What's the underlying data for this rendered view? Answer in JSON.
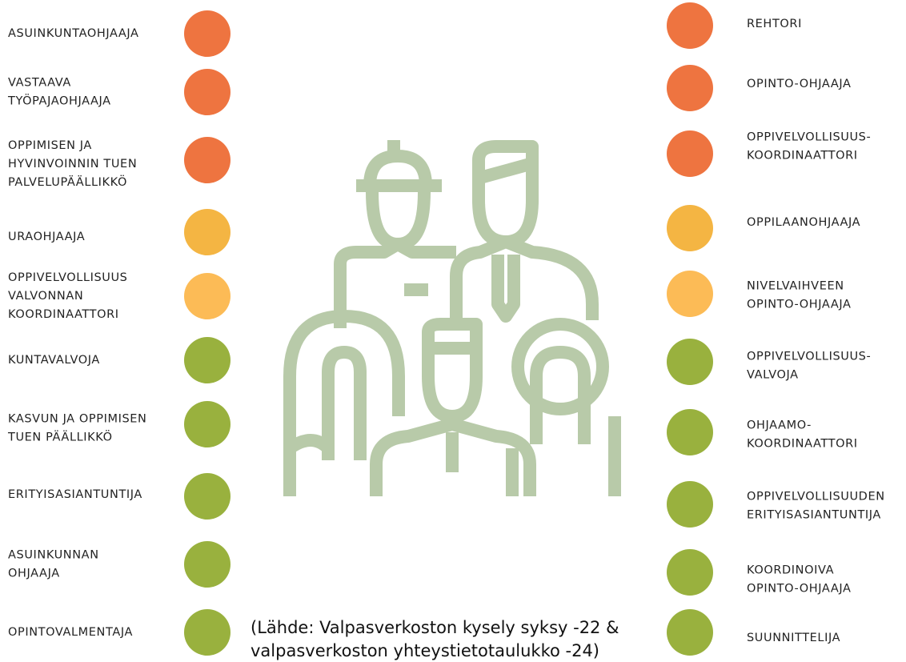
{
  "left": [
    {
      "lines": [
        "ASUINKUNTAOHJAAJA"
      ],
      "color": "#ee7440"
    },
    {
      "lines": [
        "VASTAAVA",
        "TYÖPAJAOHJAAJA"
      ],
      "color": "#ee7440"
    },
    {
      "lines": [
        "OPPIMISEN JA",
        "HYVINVOINNIN TUEN",
        "PALVELUPÄÄLLIKKÖ"
      ],
      "color": "#ee7440"
    },
    {
      "lines": [
        "URAOHJAAJA"
      ],
      "color": "#f4b543"
    },
    {
      "lines": [
        "OPPIVELVOLLISUUS",
        "VALVONNAN",
        "KOORDINAATTORI"
      ],
      "color": "#fcbb56"
    },
    {
      "lines": [
        "KUNTAVALVOJA"
      ],
      "color": "#99b13e"
    },
    {
      "lines": [
        "KASVUN JA OPPIMISEN",
        "TUEN PÄÄLLIKKÖ"
      ],
      "color": "#99b13e"
    },
    {
      "lines": [
        "ERITYISASIANTUNTIJA"
      ],
      "color": "#99b13e"
    },
    {
      "lines": [
        "ASUINKUNNAN",
        "OHJAAJA"
      ],
      "color": "#99b13e"
    },
    {
      "lines": [
        "OPINTOVALMENTAJA"
      ],
      "color": "#99b13e"
    }
  ],
  "right": [
    {
      "lines": [
        "REHTORI"
      ],
      "color": "#ee7440"
    },
    {
      "lines": [
        "OPINTO-OHJAAJA"
      ],
      "color": "#ee7440"
    },
    {
      "lines": [
        "OPPIVELVOLLISUUS-",
        "KOORDINAATTORI"
      ],
      "color": "#ee7440"
    },
    {
      "lines": [
        "OPPILAANOHJAAJA"
      ],
      "color": "#f4b543"
    },
    {
      "lines": [
        "NIVELVAIHVEEN",
        "OPINTO-OHJAAJA"
      ],
      "color": "#fcbb56"
    },
    {
      "lines": [
        "OPPIVELVOLLISUUS-",
        "VALVOJA"
      ],
      "color": "#99b13e"
    },
    {
      "lines": [
        "OHJAAMO-",
        "KOORDINAATTORI"
      ],
      "color": "#99b13e"
    },
    {
      "lines": [
        "OPPIVELVOLLISUUDEN",
        "ERITYISASIANTUNTIJA"
      ],
      "color": "#99b13e"
    },
    {
      "lines": [
        "KOORDINOIVA",
        "OPINTO-OHJAAJA"
      ],
      "color": "#99b13e"
    },
    {
      "lines": [
        "SUUNNITTELIJA"
      ],
      "color": "#99b13e"
    }
  ],
  "source": [
    "(Lähde: Valpasverkoston kysely syksy -22 &",
    "valpasverkoston yhteystietotaulukko -24)"
  ]
}
